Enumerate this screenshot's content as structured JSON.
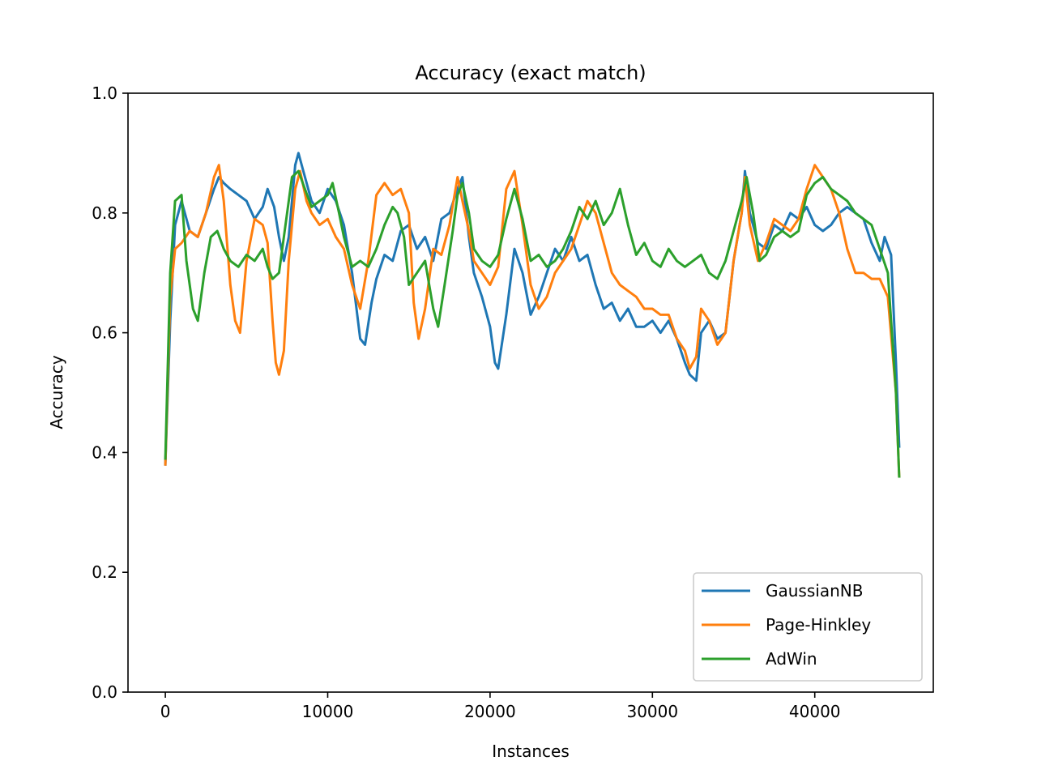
{
  "chart_data": {
    "type": "line",
    "title": "Accuracy (exact match)",
    "xlabel": "Instances",
    "ylabel": "Accuracy",
    "xlim": [
      -2300,
      47300
    ],
    "ylim": [
      0.0,
      1.0
    ],
    "xticks": [
      0,
      10000,
      20000,
      30000,
      40000
    ],
    "yticks": [
      0.0,
      0.2,
      0.4,
      0.6,
      0.8,
      1.0
    ],
    "xtick_labels": [
      "0",
      "10000",
      "20000",
      "30000",
      "40000"
    ],
    "ytick_labels": [
      "0.0",
      "0.2",
      "0.4",
      "0.6",
      "0.8",
      "1.0"
    ],
    "grid": false,
    "legend_position": "lower-right",
    "series": [
      {
        "name": "GaussianNB",
        "color": "#1f77b4",
        "points": [
          [
            0,
            0.38
          ],
          [
            300,
            0.62
          ],
          [
            600,
            0.78
          ],
          [
            1000,
            0.82
          ],
          [
            1500,
            0.77
          ],
          [
            2000,
            0.76
          ],
          [
            2500,
            0.8
          ],
          [
            3000,
            0.84
          ],
          [
            3300,
            0.86
          ],
          [
            3600,
            0.85
          ],
          [
            4000,
            0.84
          ],
          [
            4500,
            0.83
          ],
          [
            5000,
            0.82
          ],
          [
            5500,
            0.79
          ],
          [
            6000,
            0.81
          ],
          [
            6300,
            0.84
          ],
          [
            6700,
            0.81
          ],
          [
            7000,
            0.76
          ],
          [
            7300,
            0.72
          ],
          [
            7600,
            0.76
          ],
          [
            8000,
            0.88
          ],
          [
            8200,
            0.9
          ],
          [
            8500,
            0.87
          ],
          [
            9000,
            0.82
          ],
          [
            9500,
            0.8
          ],
          [
            10000,
            0.84
          ],
          [
            10500,
            0.82
          ],
          [
            11000,
            0.78
          ],
          [
            11500,
            0.7
          ],
          [
            12000,
            0.59
          ],
          [
            12300,
            0.58
          ],
          [
            12700,
            0.65
          ],
          [
            13000,
            0.69
          ],
          [
            13500,
            0.73
          ],
          [
            14000,
            0.72
          ],
          [
            14500,
            0.77
          ],
          [
            15000,
            0.78
          ],
          [
            15500,
            0.74
          ],
          [
            16000,
            0.76
          ],
          [
            16500,
            0.72
          ],
          [
            17000,
            0.79
          ],
          [
            17500,
            0.8
          ],
          [
            18000,
            0.84
          ],
          [
            18300,
            0.86
          ],
          [
            18700,
            0.76
          ],
          [
            19000,
            0.7
          ],
          [
            19500,
            0.66
          ],
          [
            20000,
            0.61
          ],
          [
            20300,
            0.55
          ],
          [
            20500,
            0.54
          ],
          [
            21000,
            0.63
          ],
          [
            21500,
            0.74
          ],
          [
            22000,
            0.7
          ],
          [
            22500,
            0.63
          ],
          [
            23000,
            0.66
          ],
          [
            23500,
            0.7
          ],
          [
            24000,
            0.74
          ],
          [
            24500,
            0.72
          ],
          [
            25000,
            0.76
          ],
          [
            25500,
            0.72
          ],
          [
            26000,
            0.73
          ],
          [
            26500,
            0.68
          ],
          [
            27000,
            0.64
          ],
          [
            27500,
            0.65
          ],
          [
            28000,
            0.62
          ],
          [
            28500,
            0.64
          ],
          [
            29000,
            0.61
          ],
          [
            29500,
            0.61
          ],
          [
            30000,
            0.62
          ],
          [
            30500,
            0.6
          ],
          [
            31000,
            0.62
          ],
          [
            31500,
            0.59
          ],
          [
            32000,
            0.55
          ],
          [
            32300,
            0.53
          ],
          [
            32700,
            0.52
          ],
          [
            33000,
            0.6
          ],
          [
            33500,
            0.62
          ],
          [
            34000,
            0.59
          ],
          [
            34500,
            0.6
          ],
          [
            35000,
            0.72
          ],
          [
            35500,
            0.8
          ],
          [
            35700,
            0.87
          ],
          [
            36000,
            0.8
          ],
          [
            36500,
            0.75
          ],
          [
            37000,
            0.74
          ],
          [
            37500,
            0.78
          ],
          [
            38000,
            0.77
          ],
          [
            38500,
            0.8
          ],
          [
            39000,
            0.79
          ],
          [
            39500,
            0.81
          ],
          [
            40000,
            0.78
          ],
          [
            40500,
            0.77
          ],
          [
            41000,
            0.78
          ],
          [
            41500,
            0.8
          ],
          [
            42000,
            0.81
          ],
          [
            42500,
            0.8
          ],
          [
            43000,
            0.79
          ],
          [
            43500,
            0.75
          ],
          [
            44000,
            0.72
          ],
          [
            44300,
            0.76
          ],
          [
            44700,
            0.73
          ],
          [
            45000,
            0.55
          ],
          [
            45200,
            0.41
          ]
        ]
      },
      {
        "name": "Page-Hinkley",
        "color": "#ff7f0e",
        "points": [
          [
            0,
            0.38
          ],
          [
            300,
            0.66
          ],
          [
            600,
            0.74
          ],
          [
            1000,
            0.75
          ],
          [
            1500,
            0.77
          ],
          [
            2000,
            0.76
          ],
          [
            2500,
            0.8
          ],
          [
            3000,
            0.86
          ],
          [
            3300,
            0.88
          ],
          [
            3600,
            0.82
          ],
          [
            4000,
            0.68
          ],
          [
            4300,
            0.62
          ],
          [
            4600,
            0.6
          ],
          [
            5000,
            0.72
          ],
          [
            5500,
            0.79
          ],
          [
            6000,
            0.78
          ],
          [
            6300,
            0.75
          ],
          [
            6600,
            0.62
          ],
          [
            6800,
            0.55
          ],
          [
            7000,
            0.53
          ],
          [
            7300,
            0.57
          ],
          [
            7600,
            0.72
          ],
          [
            8000,
            0.84
          ],
          [
            8300,
            0.87
          ],
          [
            8700,
            0.82
          ],
          [
            9000,
            0.8
          ],
          [
            9500,
            0.78
          ],
          [
            10000,
            0.79
          ],
          [
            10500,
            0.76
          ],
          [
            11000,
            0.74
          ],
          [
            11500,
            0.68
          ],
          [
            12000,
            0.64
          ],
          [
            12500,
            0.72
          ],
          [
            13000,
            0.83
          ],
          [
            13500,
            0.85
          ],
          [
            14000,
            0.83
          ],
          [
            14500,
            0.84
          ],
          [
            15000,
            0.8
          ],
          [
            15300,
            0.65
          ],
          [
            15600,
            0.59
          ],
          [
            16000,
            0.64
          ],
          [
            16500,
            0.74
          ],
          [
            17000,
            0.73
          ],
          [
            17500,
            0.78
          ],
          [
            18000,
            0.86
          ],
          [
            18300,
            0.82
          ],
          [
            18700,
            0.77
          ],
          [
            19000,
            0.72
          ],
          [
            19500,
            0.7
          ],
          [
            20000,
            0.68
          ],
          [
            20500,
            0.71
          ],
          [
            21000,
            0.84
          ],
          [
            21500,
            0.87
          ],
          [
            22000,
            0.78
          ],
          [
            22500,
            0.68
          ],
          [
            23000,
            0.64
          ],
          [
            23500,
            0.66
          ],
          [
            24000,
            0.7
          ],
          [
            24500,
            0.72
          ],
          [
            25000,
            0.74
          ],
          [
            25500,
            0.78
          ],
          [
            26000,
            0.82
          ],
          [
            26500,
            0.8
          ],
          [
            27000,
            0.75
          ],
          [
            27500,
            0.7
          ],
          [
            28000,
            0.68
          ],
          [
            28500,
            0.67
          ],
          [
            29000,
            0.66
          ],
          [
            29500,
            0.64
          ],
          [
            30000,
            0.64
          ],
          [
            30500,
            0.63
          ],
          [
            31000,
            0.63
          ],
          [
            31500,
            0.59
          ],
          [
            32000,
            0.57
          ],
          [
            32300,
            0.54
          ],
          [
            32700,
            0.56
          ],
          [
            33000,
            0.64
          ],
          [
            33500,
            0.62
          ],
          [
            34000,
            0.58
          ],
          [
            34500,
            0.6
          ],
          [
            35000,
            0.72
          ],
          [
            35500,
            0.8
          ],
          [
            35700,
            0.86
          ],
          [
            36000,
            0.78
          ],
          [
            36500,
            0.72
          ],
          [
            37000,
            0.75
          ],
          [
            37500,
            0.79
          ],
          [
            38000,
            0.78
          ],
          [
            38500,
            0.77
          ],
          [
            39000,
            0.79
          ],
          [
            39500,
            0.84
          ],
          [
            40000,
            0.88
          ],
          [
            40500,
            0.86
          ],
          [
            41000,
            0.84
          ],
          [
            41500,
            0.8
          ],
          [
            42000,
            0.74
          ],
          [
            42500,
            0.7
          ],
          [
            43000,
            0.7
          ],
          [
            43500,
            0.69
          ],
          [
            44000,
            0.69
          ],
          [
            44500,
            0.66
          ],
          [
            45000,
            0.5
          ],
          [
            45200,
            0.36
          ]
        ]
      },
      {
        "name": "AdWin",
        "color": "#2ca02c",
        "points": [
          [
            0,
            0.39
          ],
          [
            300,
            0.7
          ],
          [
            600,
            0.82
          ],
          [
            1000,
            0.83
          ],
          [
            1300,
            0.72
          ],
          [
            1700,
            0.64
          ],
          [
            2000,
            0.62
          ],
          [
            2400,
            0.7
          ],
          [
            2800,
            0.76
          ],
          [
            3200,
            0.77
          ],
          [
            3600,
            0.74
          ],
          [
            4000,
            0.72
          ],
          [
            4500,
            0.71
          ],
          [
            5000,
            0.73
          ],
          [
            5500,
            0.72
          ],
          [
            6000,
            0.74
          ],
          [
            6300,
            0.71
          ],
          [
            6600,
            0.69
          ],
          [
            7000,
            0.7
          ],
          [
            7400,
            0.78
          ],
          [
            7800,
            0.86
          ],
          [
            8200,
            0.87
          ],
          [
            8600,
            0.84
          ],
          [
            9000,
            0.81
          ],
          [
            9500,
            0.82
          ],
          [
            10000,
            0.83
          ],
          [
            10300,
            0.85
          ],
          [
            10700,
            0.8
          ],
          [
            11000,
            0.76
          ],
          [
            11500,
            0.71
          ],
          [
            12000,
            0.72
          ],
          [
            12500,
            0.71
          ],
          [
            13000,
            0.74
          ],
          [
            13500,
            0.78
          ],
          [
            14000,
            0.81
          ],
          [
            14300,
            0.8
          ],
          [
            14700,
            0.76
          ],
          [
            15000,
            0.68
          ],
          [
            15500,
            0.7
          ],
          [
            16000,
            0.72
          ],
          [
            16500,
            0.64
          ],
          [
            16800,
            0.61
          ],
          [
            17200,
            0.68
          ],
          [
            17700,
            0.77
          ],
          [
            18000,
            0.83
          ],
          [
            18300,
            0.85
          ],
          [
            18700,
            0.8
          ],
          [
            19000,
            0.74
          ],
          [
            19500,
            0.72
          ],
          [
            20000,
            0.71
          ],
          [
            20500,
            0.73
          ],
          [
            21000,
            0.79
          ],
          [
            21500,
            0.84
          ],
          [
            22000,
            0.79
          ],
          [
            22500,
            0.72
          ],
          [
            23000,
            0.73
          ],
          [
            23500,
            0.71
          ],
          [
            24000,
            0.72
          ],
          [
            24500,
            0.74
          ],
          [
            25000,
            0.77
          ],
          [
            25500,
            0.81
          ],
          [
            26000,
            0.79
          ],
          [
            26500,
            0.82
          ],
          [
            27000,
            0.78
          ],
          [
            27500,
            0.8
          ],
          [
            28000,
            0.84
          ],
          [
            28500,
            0.78
          ],
          [
            29000,
            0.73
          ],
          [
            29500,
            0.75
          ],
          [
            30000,
            0.72
          ],
          [
            30500,
            0.71
          ],
          [
            31000,
            0.74
          ],
          [
            31500,
            0.72
          ],
          [
            32000,
            0.71
          ],
          [
            32500,
            0.72
          ],
          [
            33000,
            0.73
          ],
          [
            33500,
            0.7
          ],
          [
            34000,
            0.69
          ],
          [
            34500,
            0.72
          ],
          [
            35000,
            0.77
          ],
          [
            35500,
            0.82
          ],
          [
            35800,
            0.86
          ],
          [
            36200,
            0.8
          ],
          [
            36600,
            0.72
          ],
          [
            37000,
            0.73
          ],
          [
            37500,
            0.76
          ],
          [
            38000,
            0.77
          ],
          [
            38500,
            0.76
          ],
          [
            39000,
            0.77
          ],
          [
            39500,
            0.83
          ],
          [
            40000,
            0.85
          ],
          [
            40500,
            0.86
          ],
          [
            41000,
            0.84
          ],
          [
            41500,
            0.83
          ],
          [
            42000,
            0.82
          ],
          [
            42500,
            0.8
          ],
          [
            43000,
            0.79
          ],
          [
            43500,
            0.78
          ],
          [
            44000,
            0.74
          ],
          [
            44500,
            0.7
          ],
          [
            45000,
            0.5
          ],
          [
            45200,
            0.36
          ]
        ]
      }
    ]
  }
}
